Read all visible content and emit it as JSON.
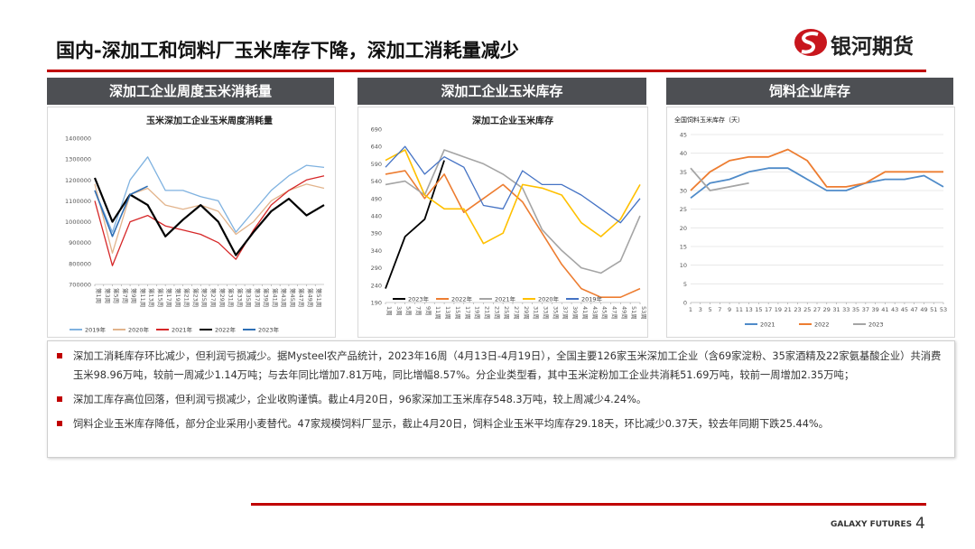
{
  "header": {
    "title": "国内-深加工和饲料厂玉米库存下降，深加工消耗量减少",
    "logo": "银河期货"
  },
  "panels": [
    "深加工企业周度玉米消耗量",
    "深加工企业玉米库存",
    "饲料企业库存"
  ],
  "chart_data": [
    {
      "type": "line",
      "title": "玉米深加工企业玉米周度消耗量",
      "x": [
        1,
        5,
        9,
        13,
        17,
        21,
        25,
        29,
        33,
        37,
        41,
        45,
        49,
        53
      ],
      "xlim": [
        1,
        53
      ],
      "xticks": [
        {
          "value": 1,
          "label": "第1周"
        },
        {
          "value": 3,
          "label": "第3周"
        },
        {
          "value": 5,
          "label": "第5周"
        },
        {
          "value": 7,
          "label": "第7周"
        },
        {
          "value": 9,
          "label": "第9周"
        },
        {
          "value": 11,
          "label": "第11周"
        },
        {
          "value": 13,
          "label": "第13周"
        },
        {
          "value": 15,
          "label": "第15周"
        },
        {
          "value": 17,
          "label": "第17周"
        },
        {
          "value": 19,
          "label": "第19周"
        },
        {
          "value": 21,
          "label": "第21周"
        },
        {
          "value": 23,
          "label": "第23周"
        },
        {
          "value": 25,
          "label": "第25周"
        },
        {
          "value": 27,
          "label": "第27周"
        },
        {
          "value": 29,
          "label": "第29周"
        },
        {
          "value": 31,
          "label": "第31周"
        },
        {
          "value": 33,
          "label": "第33周"
        },
        {
          "value": 35,
          "label": "第35周"
        },
        {
          "value": 37,
          "label": "第37周"
        },
        {
          "value": 39,
          "label": "第39周"
        },
        {
          "value": 41,
          "label": "第41周"
        },
        {
          "value": 43,
          "label": "第43周"
        },
        {
          "value": 45,
          "label": "第45周"
        },
        {
          "value": 47,
          "label": "第47周"
        },
        {
          "value": 49,
          "label": "第49周"
        },
        {
          "value": 51,
          "label": "第51周"
        }
      ],
      "ylim": [
        700000,
        1400000
      ],
      "yticks": [
        700000,
        800000,
        900000,
        1000000,
        1100000,
        1200000,
        1300000,
        1400000
      ],
      "grid": false,
      "legend": "bottom",
      "series": [
        {
          "name": "2019年",
          "color": "#7fb2e0",
          "values": [
            1150000,
            950000,
            1200000,
            1310000,
            1150000,
            1150000,
            1120000,
            1100000,
            950000,
            1050000,
            1150000,
            1220000,
            1270000,
            1260000
          ]
        },
        {
          "name": "2020年",
          "color": "#e2b48c",
          "values": [
            1180000,
            850000,
            1130000,
            1160000,
            1080000,
            1060000,
            1080000,
            1050000,
            940000,
            1000000,
            1100000,
            1150000,
            1180000,
            1160000
          ]
        },
        {
          "name": "2021年",
          "color": "#d62728",
          "values": [
            1100000,
            790000,
            1000000,
            1030000,
            980000,
            960000,
            940000,
            900000,
            820000,
            960000,
            1080000,
            1150000,
            1200000,
            1220000
          ]
        },
        {
          "name": "2022年",
          "color": "#000000",
          "values": [
            1210000,
            1000000,
            1130000,
            1080000,
            930000,
            1010000,
            1080000,
            1000000,
            840000,
            950000,
            1050000,
            1110000,
            1030000,
            1080000
          ]
        },
        {
          "name": "2023年",
          "color": "#2e6fb5",
          "values": [
            1150000,
            930000,
            1130000,
            1170000,
            null,
            null,
            null,
            null,
            null,
            null,
            null,
            null,
            null,
            null
          ]
        }
      ]
    },
    {
      "type": "line",
      "title": "深加工企业玉米库存",
      "x": [
        1,
        5,
        9,
        13,
        17,
        21,
        25,
        29,
        33,
        37,
        41,
        45,
        49,
        53
      ],
      "xlim": [
        1,
        53
      ],
      "xticks": [
        {
          "value": 1,
          "label": "1周"
        },
        {
          "value": 3,
          "label": "3周"
        },
        {
          "value": 5,
          "label": "5周"
        },
        {
          "value": 7,
          "label": "7周"
        },
        {
          "value": 9,
          "label": "9周"
        },
        {
          "value": 11,
          "label": "11周"
        },
        {
          "value": 13,
          "label": "13周"
        },
        {
          "value": 15,
          "label": "15周"
        },
        {
          "value": 17,
          "label": "17周"
        },
        {
          "value": 19,
          "label": "19周"
        },
        {
          "value": 21,
          "label": "21周"
        },
        {
          "value": 23,
          "label": "23周"
        },
        {
          "value": 25,
          "label": "25周"
        },
        {
          "value": 27,
          "label": "27周"
        },
        {
          "value": 29,
          "label": "29周"
        },
        {
          "value": 31,
          "label": "31周"
        },
        {
          "value": 33,
          "label": "33周"
        },
        {
          "value": 35,
          "label": "35周"
        },
        {
          "value": 37,
          "label": "37周"
        },
        {
          "value": 39,
          "label": "39周"
        },
        {
          "value": 41,
          "label": "41周"
        },
        {
          "value": 43,
          "label": "43周"
        },
        {
          "value": 45,
          "label": "45周"
        },
        {
          "value": 47,
          "label": "47周"
        },
        {
          "value": 49,
          "label": "49周"
        },
        {
          "value": 51,
          "label": "51周"
        },
        {
          "value": 53,
          "label": "53周"
        }
      ],
      "ylim": [
        190,
        690
      ],
      "yticks": [
        190,
        240,
        290,
        340,
        390,
        440,
        490,
        540,
        590,
        640,
        690
      ],
      "grid": false,
      "legend": "bottom",
      "series": [
        {
          "name": "2023年",
          "color": "#000000",
          "values": [
            230,
            380,
            430,
            600,
            null,
            null,
            null,
            null,
            null,
            null,
            null,
            null,
            null,
            null
          ]
        },
        {
          "name": "2022年",
          "color": "#ed7d31",
          "values": [
            560,
            570,
            490,
            560,
            450,
            490,
            530,
            480,
            390,
            300,
            230,
            205,
            205,
            230
          ]
        },
        {
          "name": "2021年",
          "color": "#a5a5a5",
          "values": [
            530,
            540,
            500,
            630,
            610,
            590,
            560,
            520,
            400,
            340,
            290,
            275,
            310,
            440
          ]
        },
        {
          "name": "2020年",
          "color": "#ffc000",
          "values": [
            600,
            630,
            500,
            460,
            460,
            360,
            390,
            530,
            520,
            500,
            420,
            380,
            430,
            530
          ]
        },
        {
          "name": "2019年",
          "color": "#4472c4",
          "values": [
            580,
            640,
            560,
            610,
            580,
            470,
            460,
            570,
            530,
            530,
            500,
            460,
            420,
            490
          ]
        }
      ]
    },
    {
      "type": "line",
      "title": "全国饲料玉米库存（天）",
      "x": [
        1,
        5,
        9,
        13,
        17,
        21,
        25,
        29,
        33,
        37,
        41,
        45,
        49,
        53
      ],
      "xlim": [
        1,
        53
      ],
      "xticks": [
        1,
        3,
        5,
        7,
        9,
        11,
        13,
        15,
        17,
        19,
        21,
        23,
        25,
        27,
        29,
        31,
        33,
        35,
        37,
        39,
        41,
        43,
        45,
        47,
        49,
        51,
        53
      ],
      "ylim": [
        0,
        45
      ],
      "yticks": [
        0,
        5,
        10,
        15,
        20,
        25,
        30,
        35,
        40,
        45
      ],
      "grid": true,
      "legend": "bottom",
      "series": [
        {
          "name": "2021",
          "color": "#4f8bc9",
          "values": [
            28,
            32,
            33,
            35,
            36,
            36,
            33,
            30,
            30,
            32,
            33,
            33,
            34,
            31
          ]
        },
        {
          "name": "2022",
          "color": "#ed7d31",
          "values": [
            30,
            35,
            38,
            39,
            39,
            41,
            38,
            31,
            31,
            32,
            35,
            35,
            35,
            35
          ]
        },
        {
          "name": "2023",
          "color": "#a5a5a5",
          "values": [
            36,
            30,
            31,
            32,
            null,
            null,
            null,
            null,
            null,
            null,
            null,
            null,
            null,
            null
          ]
        }
      ]
    }
  ],
  "notes": [
    "深加工消耗库存环比减少，但利润亏损减少。据Mysteel农产品统计，2023年16周（4月13日-4月19日），全国主要126家玉米深加工企业（含69家淀粉、35家酒精及22家氨基酸企业）共消费玉米98.96万吨，较前一周减少1.14万吨；与去年同比增加7.81万吨，同比增幅8.57%。分企业类型看，其中玉米淀粉加工企业共消耗51.69万吨，较前一周增加2.35万吨；",
    "深加工库存高位回落，但利润亏损减少，企业收购谨慎。截止4月20日，96家深加工玉米库存548.3万吨，较上周减少4.24%。",
    "饲料企业玉米库存降低，部分企业采用小麦替代。47家规模饲料厂显示，截止4月20日，饲料企业玉米平均库存29.18天，环比减少0.37天，较去年同期下跌25.44%。"
  ],
  "footer": {
    "brand": "GALAXY FUTURES",
    "page": "4"
  }
}
